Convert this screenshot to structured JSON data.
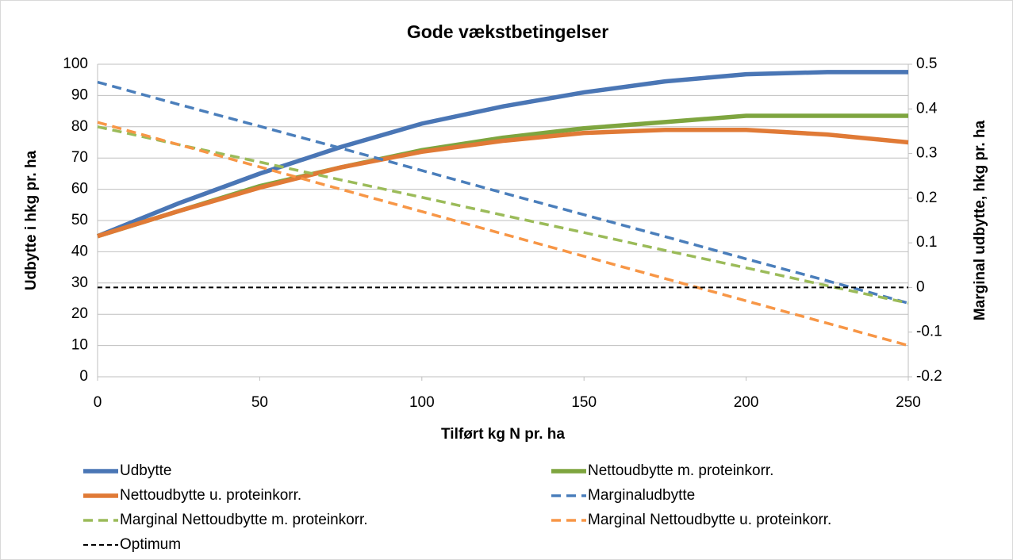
{
  "chart_data": {
    "type": "line",
    "title": "Gode vækstbetingelser",
    "x_label": "Tilført kg N pr. ha",
    "y_label": "Udbytte i hkg pr. ha",
    "y2_label": "Marginal udbytte, hkg  pr. ha",
    "x": [
      0,
      25,
      50,
      75,
      100,
      125,
      150,
      175,
      200,
      225,
      250
    ],
    "xlim": [
      0,
      250
    ],
    "xticks": [
      0,
      50,
      100,
      150,
      200,
      250
    ],
    "ylim": [
      0,
      100
    ],
    "yticks": [
      0,
      10,
      20,
      30,
      40,
      50,
      60,
      70,
      80,
      90,
      100
    ],
    "y2lim": [
      -0.2,
      0.5
    ],
    "y2ticks": [
      -0.2,
      -0.1,
      0,
      0.1,
      0.2,
      0.3,
      0.4,
      0.5
    ],
    "grid": true,
    "legend": "bottom",
    "series": [
      {
        "name": "Udbytte",
        "color": "#4a76b5",
        "dash": false,
        "values": [
          45,
          55.5,
          65,
          73.5,
          81,
          86.5,
          91,
          94.5,
          96.8,
          97.5,
          97.5
        ]
      },
      {
        "name": "Nettoudbytte m. proteinkorr.",
        "color": "#7ea53f",
        "dash": false,
        "values": [
          45,
          53,
          61,
          67,
          72.5,
          76.5,
          79.5,
          81.5,
          83.5,
          83.5,
          83.5
        ]
      },
      {
        "name": "Nettoudbytte u. proteinkorr.",
        "color": "#e07a36",
        "dash": false,
        "values": [
          45,
          53,
          60.5,
          67,
          72,
          75.5,
          78,
          79,
          79,
          77.5,
          75
        ]
      },
      {
        "name": "Marginaludbytte",
        "color": "#4a7ebb",
        "dash": true,
        "axis": "y2",
        "values": [
          0.46,
          0.41,
          0.361,
          0.312,
          0.262,
          0.212,
          0.163,
          0.114,
          0.064,
          0.015,
          -0.035
        ]
      },
      {
        "name": "Marginal Nettoudbytte m. proteinkorr.",
        "color": "#9bbb59",
        "dash": true,
        "axis": "y2",
        "values": [
          0.36,
          0.32,
          0.281,
          0.241,
          0.202,
          0.162,
          0.123,
          0.083,
          0.044,
          0.004,
          -0.035
        ]
      },
      {
        "name": "Marginal Nettoudbytte u. proteinkorr.",
        "color": "#f79646",
        "dash": true,
        "axis": "y2",
        "values": [
          0.37,
          0.32,
          0.27,
          0.22,
          0.17,
          0.12,
          0.07,
          0.02,
          -0.03,
          -0.08,
          -0.13
        ]
      },
      {
        "name": "Optimum",
        "color": "#000000",
        "dash": true,
        "thin": true,
        "axis": "y2",
        "values": [
          0,
          0,
          0,
          0,
          0,
          0,
          0,
          0,
          0,
          0,
          0
        ]
      }
    ]
  }
}
